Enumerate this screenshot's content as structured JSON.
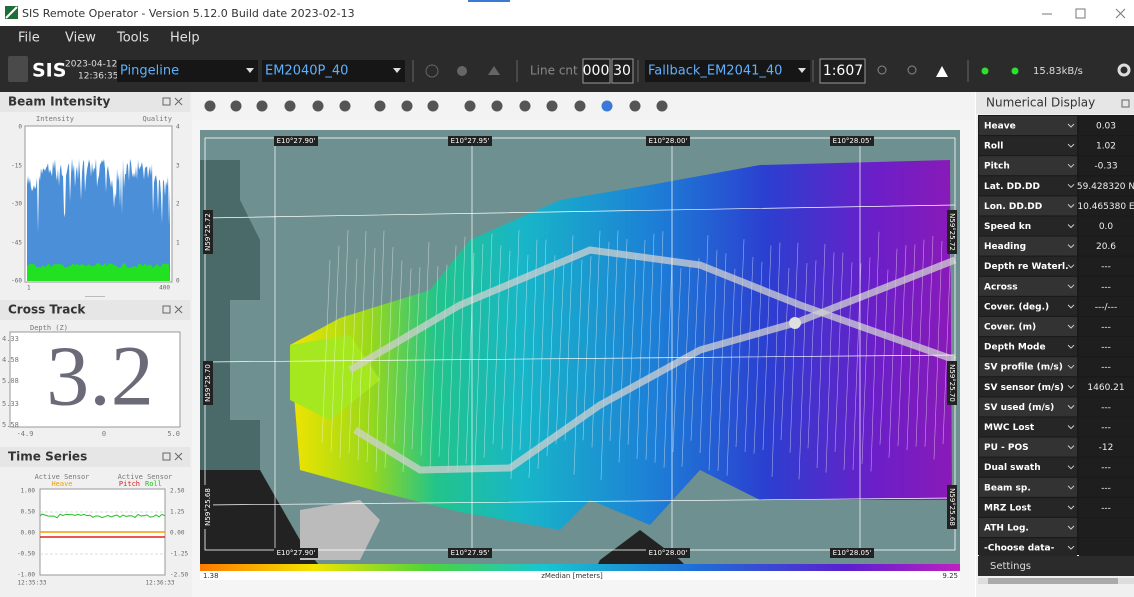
{
  "title_bar": {
    "title": "SIS Remote Operator - Version 5.12.0 Build date 2023-02-13"
  },
  "menu": [
    "File",
    "View",
    "Tools",
    "Help"
  ],
  "toolbar": {
    "logo": "SIS",
    "date": "2023-04-12",
    "time": "12:36:35Z",
    "survey": "Pingeline",
    "sensor": "EM2040P_40",
    "line_cnt_label": "Line cnt",
    "line_cnt_a": "000",
    "line_cnt_b": "30",
    "profile": "Fallback_EM2041_40",
    "scale": "1:607",
    "rate": "15.83kB/s"
  },
  "beam_intensity": {
    "title": "Beam Intensity",
    "left_label": "Intensity",
    "right_label": "Quality",
    "left_ticks": [
      "0",
      "-15",
      "-30",
      "-45",
      "-60"
    ],
    "right_ticks": [
      "4",
      "3",
      "2",
      "1",
      "0"
    ],
    "x_ticks": [
      "1",
      "400"
    ]
  },
  "cross_track": {
    "title": "Cross Track",
    "axis_label": "Depth (Z)",
    "y_ticks": [
      "4.33",
      "4.58",
      "5.08",
      "5.33",
      "5.58"
    ],
    "x_ticks": [
      "-4.9",
      "0",
      "5.0"
    ],
    "value": "3.2"
  },
  "time_series": {
    "title": "Time Series",
    "headers": [
      "Active Sensor",
      "Active Sensor"
    ],
    "sensors": [
      "Heave",
      "Pitch",
      "Roll"
    ],
    "left_ticks": [
      "1.00",
      "0.50",
      "0.00",
      "-0.50",
      "-1.00"
    ],
    "right_ticks": [
      "2.50",
      "1.25",
      "0.00",
      "-1.25",
      "-2.50"
    ],
    "x_ticks": [
      "12:35:33",
      "12:36:33"
    ]
  },
  "map": {
    "top_lon": [
      "E10°27.90'",
      "E10°27.95'",
      "E10°28.00'",
      "E10°28.05'"
    ],
    "bottom_lon": [
      "E10°27.90'",
      "E10°27.95'",
      "E10°28.00'",
      "E10°28.05'"
    ],
    "left_lat": [
      "N59°25.72",
      "N59°25.70",
      "N59°25.68"
    ],
    "right_lat": [
      "N59°25.72",
      "N59°25.70",
      "N59°25.68"
    ],
    "colorbar": {
      "min": "1.38",
      "label": "zMedian [meters]",
      "max": "9.25"
    }
  },
  "numerical_display": {
    "title": "Numerical Display",
    "rows": [
      {
        "label": "Heave",
        "value": "0.03"
      },
      {
        "label": "Roll",
        "value": "1.02"
      },
      {
        "label": "Pitch",
        "value": "-0.33"
      },
      {
        "label": "Lat. DD.DD",
        "value": "59.428320 N"
      },
      {
        "label": "Lon. DD.DD",
        "value": "10.465380 E"
      },
      {
        "label": "Speed kn",
        "value": "0.0"
      },
      {
        "label": "Heading",
        "value": "20.6"
      },
      {
        "label": "Depth re Waterl.",
        "value": "---"
      },
      {
        "label": "Across",
        "value": "---"
      },
      {
        "label": "Cover. (deg.)",
        "value": "---/---"
      },
      {
        "label": "Cover. (m)",
        "value": "---"
      },
      {
        "label": "Depth Mode",
        "value": "---"
      },
      {
        "label": "SV profile (m/s)",
        "value": "---"
      },
      {
        "label": "SV sensor (m/s)",
        "value": "1460.21"
      },
      {
        "label": "SV used (m/s)",
        "value": "---"
      },
      {
        "label": "MWC Lost",
        "value": "---"
      },
      {
        "label": "PU - POS",
        "value": "-12"
      },
      {
        "label": "Dual swath",
        "value": "---"
      },
      {
        "label": "Beam sp.",
        "value": "---"
      },
      {
        "label": "MRZ Lost",
        "value": "---"
      },
      {
        "label": "ATH Log."
      },
      {
        "label": "-Choose data-"
      }
    ],
    "settings": "Settings"
  }
}
